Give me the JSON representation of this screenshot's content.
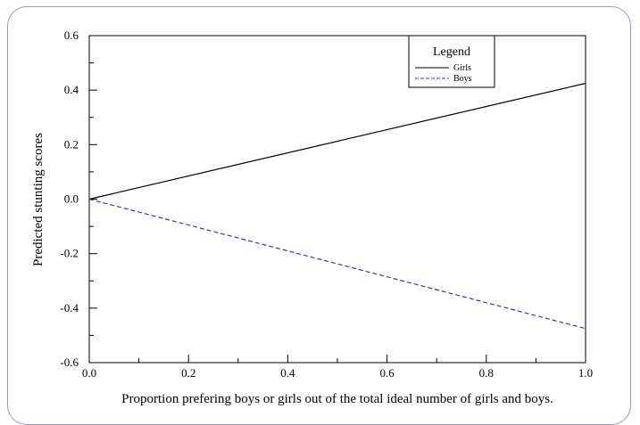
{
  "chart_data": {
    "type": "line",
    "xlabel": "Proportion prefering boys or girls out of the total ideal number of girls and boys.",
    "ylabel": "Predicted stunting scores",
    "xlim": [
      0.0,
      1.0
    ],
    "ylim": [
      -0.6,
      0.6
    ],
    "xticks": [
      "0.0",
      "0.2",
      "0.4",
      "0.6",
      "0.8",
      "1.0"
    ],
    "yticks": [
      "0.6",
      "0.4",
      "0.2",
      "0.0",
      "-0.2",
      "-0.4",
      "-0.6"
    ],
    "legend": {
      "title": "Legend",
      "position": "top-right"
    },
    "series": [
      {
        "name": "Girls",
        "color": "#000000",
        "style": "solid",
        "x": [
          0.0,
          1.0
        ],
        "y": [
          0.0,
          0.425
        ]
      },
      {
        "name": "Boys",
        "color": "#3a3aa0",
        "style": "dashed",
        "x": [
          0.0,
          1.0
        ],
        "y": [
          0.0,
          -0.475
        ]
      }
    ]
  }
}
